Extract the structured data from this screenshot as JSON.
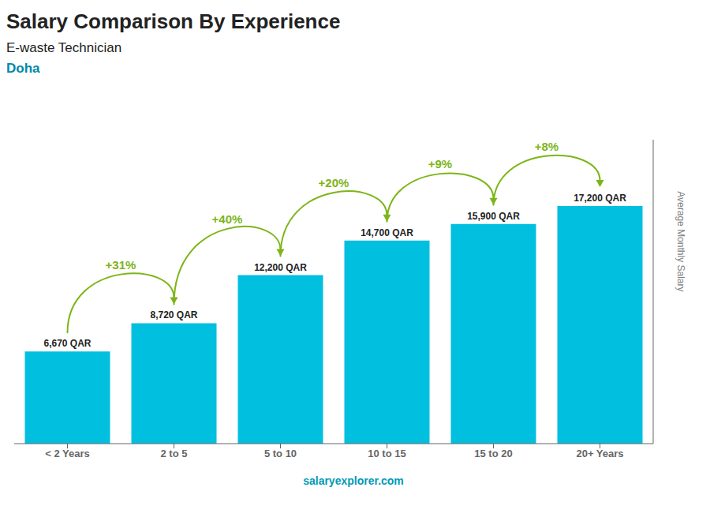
{
  "chart_data": {
    "type": "bar",
    "title": "Salary Comparison By Experience",
    "subtitle": "E-waste Technician",
    "categories": [
      "< 2 Years",
      "2 to 5",
      "5 to 10",
      "10 to 15",
      "15 to 20",
      "20+ Years"
    ],
    "values": [
      6670,
      8720,
      12200,
      14700,
      15900,
      17200
    ],
    "value_labels": [
      "6,670 QAR",
      "8,720 QAR",
      "12,200 QAR",
      "14,700 QAR",
      "15,900 QAR",
      "17,200 QAR"
    ],
    "data_labels": true,
    "color": "#00bfdf",
    "ylabel": "Average Monthly Salary",
    "ylim": [
      0,
      22000
    ],
    "tick_labels": "x",
    "grid": false,
    "annotations": [
      {
        "text": "+31%",
        "from": "< 2 Years",
        "to": "2 to 5"
      },
      {
        "text": "+40%",
        "from": "2 to 5",
        "to": "5 to 10"
      },
      {
        "text": "+20%",
        "from": "5 to 10",
        "to": "10 to 15"
      },
      {
        "text": "+9%",
        "from": "10 to 15",
        "to": "15 to 20"
      },
      {
        "text": "+8%",
        "from": "15 to 20",
        "to": "20+ Years"
      },
      {
        "text": "Doha"
      },
      {
        "text": "salaryexplorer.com"
      }
    ]
  }
}
